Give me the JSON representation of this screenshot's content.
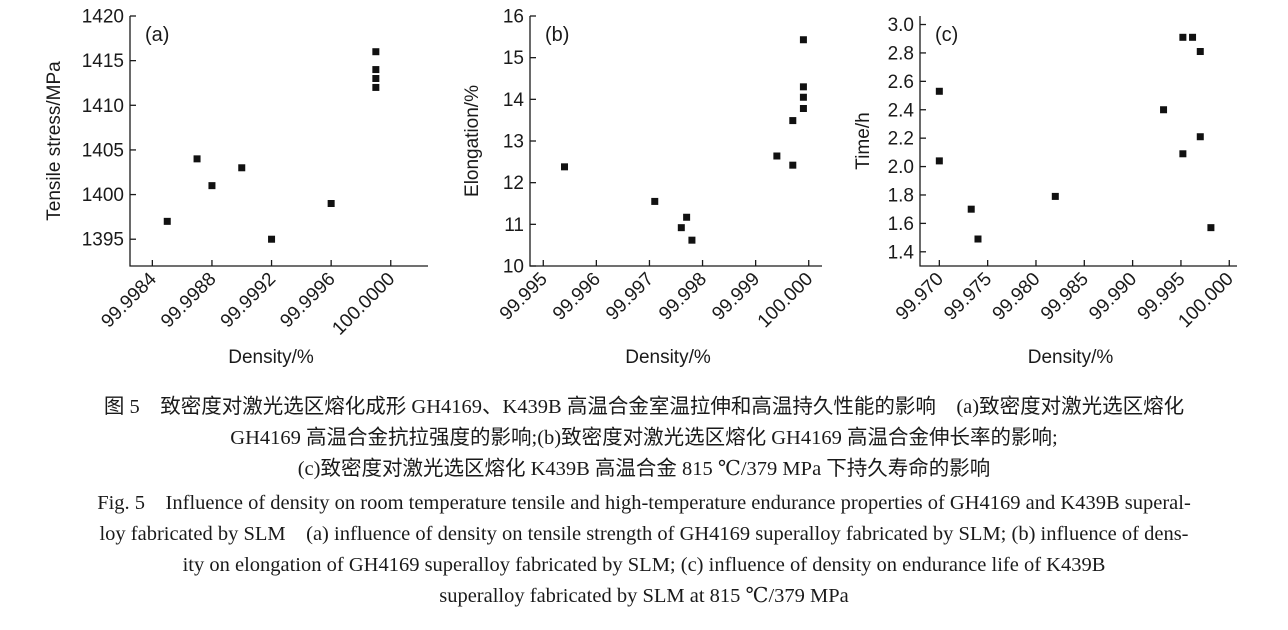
{
  "chart_data": [
    {
      "type": "scatter",
      "panel_label": "(a)",
      "xlabel": "Density/%",
      "ylabel": "Tensile stress/MPa",
      "xlim": [
        99.99825,
        100.00025
      ],
      "ylim": [
        1392,
        1420
      ],
      "xticks": [
        99.9984,
        99.9988,
        99.9992,
        99.9996,
        100.0
      ],
      "xtick_labels": [
        "99.9984",
        "99.9988",
        "99.9992",
        "99.9996",
        "100.0000"
      ],
      "yticks": [
        1395,
        1400,
        1405,
        1410,
        1415,
        1420
      ],
      "ytick_labels": [
        "1395",
        "1400",
        "1405",
        "1410",
        "1415",
        "1420"
      ],
      "points": [
        {
          "x": 99.9985,
          "y": 1397.0
        },
        {
          "x": 99.9987,
          "y": 1404.0
        },
        {
          "x": 99.9988,
          "y": 1401.0
        },
        {
          "x": 99.999,
          "y": 1403.0
        },
        {
          "x": 99.9992,
          "y": 1395.0
        },
        {
          "x": 99.9996,
          "y": 1399.0
        },
        {
          "x": 99.9999,
          "y": 1416.0
        },
        {
          "x": 99.9999,
          "y": 1414.0
        },
        {
          "x": 99.9999,
          "y": 1413.0
        },
        {
          "x": 99.9999,
          "y": 1412.0
        }
      ]
    },
    {
      "type": "scatter",
      "panel_label": "(b)",
      "xlabel": "Density/%",
      "ylabel": "Elongation/%",
      "xlim": [
        99.99475,
        100.00025
      ],
      "ylim": [
        10,
        16
      ],
      "xticks": [
        99.995,
        99.996,
        99.997,
        99.998,
        99.999,
        100.0
      ],
      "xtick_labels": [
        "99.995",
        "99.996",
        "99.997",
        "99.998",
        "99.999",
        "100.000"
      ],
      "yticks": [
        10,
        11,
        12,
        13,
        14,
        15,
        16
      ],
      "ytick_labels": [
        "10",
        "11",
        "12",
        "13",
        "14",
        "15",
        "16"
      ],
      "points": [
        {
          "x": 99.9954,
          "y": 12.38
        },
        {
          "x": 99.9971,
          "y": 11.55
        },
        {
          "x": 99.9976,
          "y": 10.92
        },
        {
          "x": 99.9977,
          "y": 11.17
        },
        {
          "x": 99.9978,
          "y": 10.62
        },
        {
          "x": 99.9994,
          "y": 12.64
        },
        {
          "x": 99.9997,
          "y": 13.49
        },
        {
          "x": 99.9997,
          "y": 12.42
        },
        {
          "x": 99.9999,
          "y": 15.43
        },
        {
          "x": 99.9999,
          "y": 14.3
        },
        {
          "x": 99.9999,
          "y": 14.05
        },
        {
          "x": 99.9999,
          "y": 13.78
        }
      ]
    },
    {
      "type": "scatter",
      "panel_label": "(c)",
      "xlabel": "Density/%",
      "ylabel": "Time/h",
      "xlim": [
        99.968,
        100.0008
      ],
      "ylim": [
        1.3,
        3.06
      ],
      "xticks": [
        99.97,
        99.975,
        99.98,
        99.985,
        99.99,
        99.995,
        100.0
      ],
      "xtick_labels": [
        "99.970",
        "99.975",
        "99.980",
        "99.985",
        "99.990",
        "99.995",
        "100.000"
      ],
      "yticks": [
        1.4,
        1.6,
        1.8,
        2.0,
        2.2,
        2.4,
        2.6,
        2.8,
        3.0
      ],
      "ytick_labels": [
        "1.4",
        "1.6",
        "1.8",
        "2.0",
        "2.2",
        "2.4",
        "2.6",
        "2.8",
        "3.0"
      ],
      "points": [
        {
          "x": 99.97,
          "y": 2.53
        },
        {
          "x": 99.97,
          "y": 2.04
        },
        {
          "x": 99.9733,
          "y": 1.7
        },
        {
          "x": 99.974,
          "y": 1.49
        },
        {
          "x": 99.982,
          "y": 1.79
        },
        {
          "x": 99.9932,
          "y": 2.4
        },
        {
          "x": 99.9952,
          "y": 2.09
        },
        {
          "x": 99.9952,
          "y": 2.91
        },
        {
          "x": 99.9962,
          "y": 2.91
        },
        {
          "x": 99.997,
          "y": 2.81
        },
        {
          "x": 99.997,
          "y": 2.21
        },
        {
          "x": 99.9981,
          "y": 1.57
        }
      ]
    }
  ],
  "caption": {
    "zh": [
      "图 5　致密度对激光选区熔化成形 GH4169、K439B 高温合金室温拉伸和高温持久性能的影响　(a)致密度对激光选区熔化",
      "GH4169 高温合金抗拉强度的影响;(b)致密度对激光选区熔化 GH4169 高温合金伸长率的影响;",
      "(c)致密度对激光选区熔化 K439B 高温合金 815 ℃/379 MPa 下持久寿命的影响"
    ],
    "en": [
      "Fig. 5　Influence of density on room temperature tensile and high-temperature endurance properties of GH4169 and K439B superal-",
      "loy fabricated by SLM　(a) influence of density on tensile strength of GH4169 superalloy fabricated by SLM; (b) influence of dens-",
      "ity on elongation of GH4169 superalloy fabricated by SLM; (c) influence of density on endurance life of K439B",
      "superalloy fabricated by SLM at 815 ℃/379 MPa"
    ]
  }
}
